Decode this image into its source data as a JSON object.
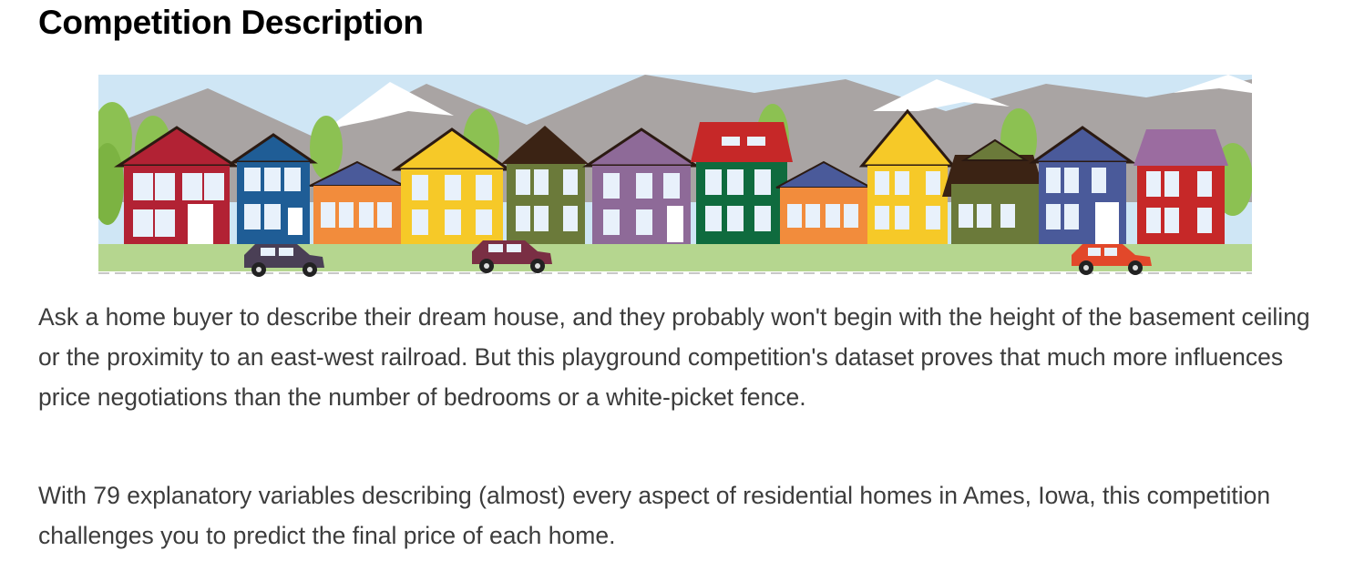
{
  "page": {
    "title": "Competition Description",
    "banner_alt": "Illustration of a row of colorful houses with mountains behind and cars on the street",
    "paragraphs": [
      "Ask a home buyer to describe their dream house, and they probably won't begin with the height of the basement ceiling or the proximity to an east-west railroad. But this playground competition's dataset proves that much more influences price negotiations than the number of bedrooms or a white-picket fence.",
      "With 79 explanatory variables describing (almost) every aspect of residential homes in Ames, Iowa, this competition challenges you to predict the final price of each home."
    ]
  },
  "colors": {
    "sky": "#cfe6f5",
    "mountain": "#a9a4a3",
    "snow": "#ffffff",
    "grass": "#b5d68f",
    "trees": "#8cc152",
    "house_palette": [
      "#b22234",
      "#1f5d96",
      "#f28c3c",
      "#f6c928",
      "#6b7a3a",
      "#8e6a98",
      "#0f6b3e",
      "#4a5a9a",
      "#9b6ca0",
      "#c62828"
    ],
    "cars": [
      "#4a3f55",
      "#7a2f44",
      "#e2482a"
    ]
  }
}
